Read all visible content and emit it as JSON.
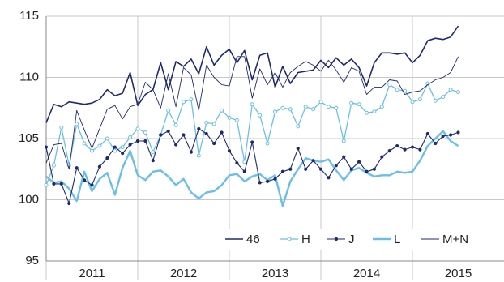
{
  "chart_data": {
    "type": "line",
    "x": [
      2011,
      2011.0833,
      2011.1667,
      2011.25,
      2011.3333,
      2011.4167,
      2011.5,
      2011.5833,
      2011.6667,
      2011.75,
      2011.8333,
      2011.9167,
      2012,
      2012.0833,
      2012.1667,
      2012.25,
      2012.3333,
      2012.4167,
      2012.5,
      2012.5833,
      2012.6667,
      2012.75,
      2012.8333,
      2012.9167,
      2013,
      2013.0833,
      2013.1667,
      2013.25,
      2013.3333,
      2013.4167,
      2013.5,
      2013.5833,
      2013.6667,
      2013.75,
      2013.8333,
      2013.9167,
      2014,
      2014.0833,
      2014.1667,
      2014.25,
      2014.3333,
      2014.4167,
      2014.5,
      2014.5833,
      2014.6667,
      2014.75,
      2014.8333,
      2014.9167,
      2015,
      2015.0833,
      2015.1667,
      2015.25,
      2015.3333,
      2015.4167,
      2015.5
    ],
    "xlim": [
      2011,
      2016
    ],
    "xticks": [
      2011,
      2012,
      2013,
      2014,
      2015
    ],
    "ylim": [
      95,
      115
    ],
    "yticks": [
      95,
      100,
      105,
      110,
      115
    ],
    "grid": true,
    "legend": "lower right",
    "series": [
      {
        "name": "46",
        "color": "#1f2a6e",
        "values": [
          106.3,
          107.8,
          107.6,
          108.0,
          107.9,
          107.8,
          107.9,
          108.2,
          109.0,
          108.5,
          108.7,
          110.4,
          107.7,
          108.6,
          109.0,
          111.2,
          109.0,
          111.3,
          110.9,
          111.5,
          110.3,
          112.5,
          111.0,
          111.8,
          112.3,
          111.2,
          112.2,
          109.8,
          111.8,
          112.0,
          109.2,
          110.9,
          109.5,
          110.4,
          110.5,
          110.6,
          111.4,
          110.8,
          111.6,
          111.0,
          111.5,
          110.8,
          109.3,
          111.2,
          112.0,
          112.0,
          111.9,
          112.0,
          111.2,
          111.8,
          113.0,
          113.2,
          113.1,
          113.3,
          114.2
        ]
      },
      {
        "name": "H",
        "color": "#6bbfe6",
        "values": [
          101.2,
          102.8,
          105.9,
          102.8,
          106.2,
          104.6,
          104.0,
          104.4,
          105.0,
          104.0,
          104.3,
          105.1,
          105.8,
          105.5,
          103.9,
          105.3,
          107.3,
          106.1,
          108.0,
          108.2,
          103.6,
          106.3,
          106.2,
          107.3,
          106.7,
          106.5,
          103.1,
          107.8,
          106.9,
          104.6,
          107.2,
          107.5,
          107.4,
          106.0,
          107.6,
          107.4,
          108.0,
          107.6,
          107.5,
          104.8,
          107.9,
          107.8,
          107.1,
          107.2,
          107.6,
          109.4,
          109.0,
          108.9,
          108.0,
          108.2,
          109.5,
          108.1,
          108.4,
          109.0,
          108.8
        ]
      },
      {
        "name": "J",
        "color": "#1f2a6e",
        "values": [
          104.3,
          101.3,
          101.3,
          99.7,
          102.6,
          101.6,
          101.2,
          102.7,
          103.4,
          104.3,
          103.8,
          104.5,
          104.8,
          104.8,
          103.2,
          105.3,
          105.6,
          104.5,
          105.3,
          103.9,
          105.8,
          105.4,
          104.6,
          105.5,
          104.0,
          103.0,
          102.3,
          104.7,
          101.4,
          101.5,
          101.7,
          102.3,
          102.5,
          104.2,
          102.5,
          103.2,
          102.5,
          101.8,
          102.8,
          103.5,
          102.5,
          103.1,
          102.3,
          102.5,
          103.5,
          104.0,
          104.4,
          104.1,
          104.3,
          104.1,
          105.4,
          104.6,
          105.2,
          105.3,
          105.5
        ]
      },
      {
        "name": "L",
        "color": "#6bbfe6",
        "values": [
          101.9,
          101.4,
          101.5,
          100.9,
          99.9,
          102.3,
          100.7,
          101.7,
          102.2,
          100.4,
          102.6,
          104.0,
          102.0,
          101.6,
          102.3,
          102.4,
          101.9,
          101.2,
          101.7,
          100.6,
          100.1,
          100.6,
          100.7,
          101.2,
          102.0,
          102.1,
          101.5,
          101.9,
          102.1,
          101.6,
          102.0,
          99.5,
          101.5,
          102.5,
          103.4,
          103.2,
          103.1,
          103.3,
          102.4,
          101.6,
          102.4,
          102.6,
          102.2,
          101.9,
          102.0,
          102.0,
          102.3,
          102.2,
          102.3,
          103.2,
          104.4,
          105.0,
          105.6,
          104.8,
          104.4
        ]
      },
      {
        "name": "M+N",
        "color": "#1f2a6e",
        "values": [
          103.0,
          104.5,
          104.6,
          102.5,
          107.3,
          105.7,
          104.2,
          105.8,
          107.4,
          107.7,
          106.6,
          107.6,
          107.8,
          109.6,
          109.0,
          107.5,
          110.3,
          107.6,
          110.8,
          110.2,
          107.3,
          111.0,
          110.0,
          109.4,
          109.3,
          111.7,
          111.7,
          108.3,
          110.7,
          109.4,
          110.4,
          109.2,
          110.4,
          110.9,
          111.3,
          111.0,
          110.5,
          111.4,
          110.6,
          109.6,
          110.8,
          110.5,
          108.6,
          109.2,
          109.2,
          109.8,
          109.7,
          108.6,
          108.8,
          108.9,
          109.4,
          109.8,
          110.0,
          110.4,
          111.7
        ]
      }
    ]
  }
}
